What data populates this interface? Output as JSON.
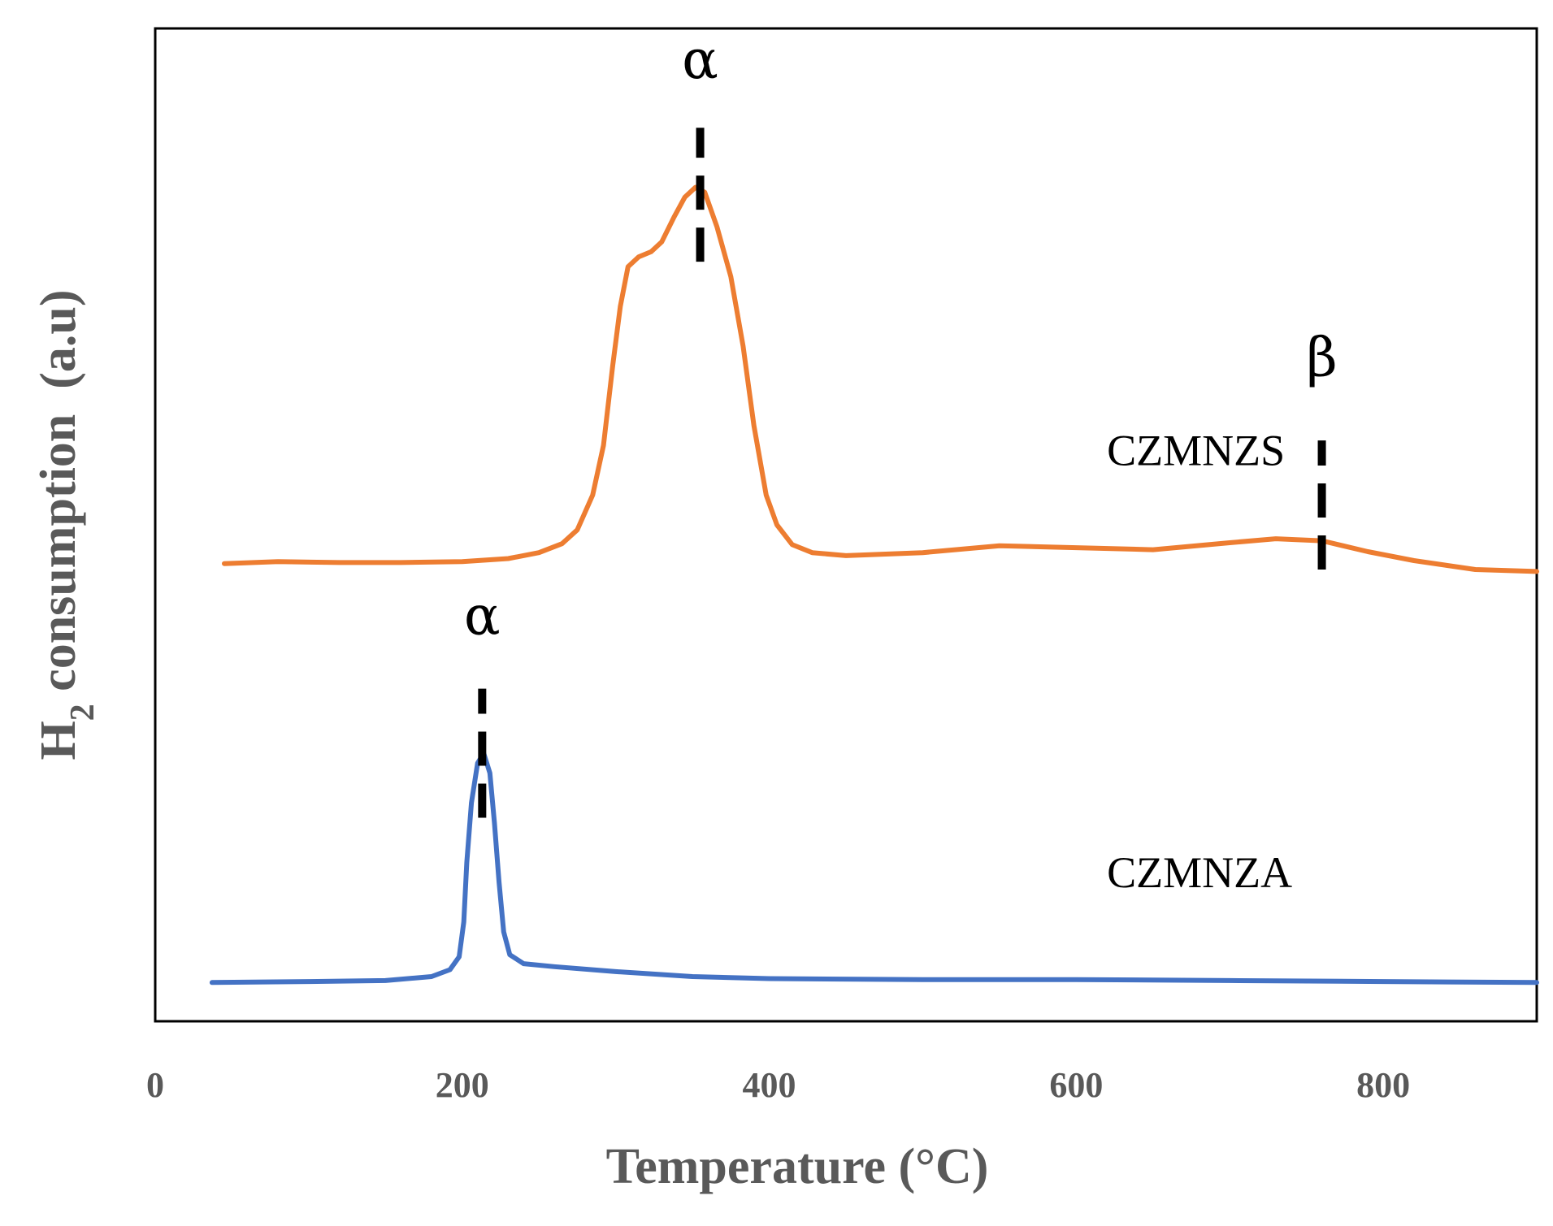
{
  "chart_data": {
    "type": "line",
    "title": "",
    "xlabel": "Temperature (°C)",
    "ylabel_main": "H",
    "ylabel_sub": "2",
    "ylabel_rest": " consumption  (a.u)",
    "xlim": [
      0,
      900
    ],
    "ylim": [
      0,
      100
    ],
    "xticks": [
      0,
      200,
      400,
      600,
      800
    ],
    "xtick_labels": [
      "0",
      "200",
      "400",
      "600",
      "800"
    ],
    "yticks_shown": false,
    "grid": false,
    "legend": "none",
    "series": [
      {
        "name": "CZMNZS",
        "color": "#ED7D31",
        "label_position": [
          620,
          56
        ],
        "points": [
          [
            45,
            46.1
          ],
          [
            80,
            46.3
          ],
          [
            120,
            46.2
          ],
          [
            160,
            46.2
          ],
          [
            200,
            46.3
          ],
          [
            230,
            46.6
          ],
          [
            250,
            47.2
          ],
          [
            265,
            48.1
          ],
          [
            275,
            49.5
          ],
          [
            285,
            53.0
          ],
          [
            292,
            58.0
          ],
          [
            298,
            66.0
          ],
          [
            303,
            72.0
          ],
          [
            308,
            76.0
          ],
          [
            315,
            77.0
          ],
          [
            323,
            77.5
          ],
          [
            330,
            78.5
          ],
          [
            338,
            81.0
          ],
          [
            345,
            83.0
          ],
          [
            352,
            84.0
          ],
          [
            358,
            83.5
          ],
          [
            366,
            80.0
          ],
          [
            375,
            75.0
          ],
          [
            383,
            68.0
          ],
          [
            390,
            60.0
          ],
          [
            398,
            53.0
          ],
          [
            405,
            50.0
          ],
          [
            415,
            48.0
          ],
          [
            428,
            47.2
          ],
          [
            450,
            46.9
          ],
          [
            500,
            47.2
          ],
          [
            550,
            47.9
          ],
          [
            600,
            47.7
          ],
          [
            650,
            47.5
          ],
          [
            700,
            48.2
          ],
          [
            730,
            48.6
          ],
          [
            760,
            48.4
          ],
          [
            790,
            47.3
          ],
          [
            820,
            46.4
          ],
          [
            860,
            45.5
          ],
          [
            900,
            45.3
          ]
        ]
      },
      {
        "name": "CZMNZA",
        "color": "#4472C4",
        "label_position": [
          620,
          13.5
        ],
        "points": [
          [
            37,
            3.9
          ],
          [
            100,
            4.0
          ],
          [
            150,
            4.1
          ],
          [
            180,
            4.5
          ],
          [
            192,
            5.2
          ],
          [
            198,
            6.5
          ],
          [
            201,
            10.0
          ],
          [
            203,
            16.0
          ],
          [
            206,
            22.0
          ],
          [
            210,
            26.0
          ],
          [
            214,
            27.0
          ],
          [
            218,
            25.0
          ],
          [
            221,
            20.0
          ],
          [
            224,
            14.0
          ],
          [
            227,
            9.0
          ],
          [
            231,
            6.7
          ],
          [
            240,
            5.8
          ],
          [
            260,
            5.5
          ],
          [
            300,
            5.0
          ],
          [
            350,
            4.5
          ],
          [
            400,
            4.3
          ],
          [
            500,
            4.2
          ],
          [
            600,
            4.2
          ],
          [
            700,
            4.1
          ],
          [
            800,
            4.0
          ],
          [
            900,
            3.9
          ]
        ]
      }
    ],
    "annotations": [
      {
        "text": "α",
        "x": 355,
        "marker_y_from": 76.5,
        "marker_y_to": 90.0,
        "label_y": 95.0
      },
      {
        "text": "β",
        "x": 760,
        "marker_y_from": 45.5,
        "marker_y_to": 58.5,
        "label_y": 65.0
      },
      {
        "text": "α",
        "x": 213,
        "marker_y_from": 20.5,
        "marker_y_to": 33.5,
        "label_y": 39.0
      }
    ]
  }
}
